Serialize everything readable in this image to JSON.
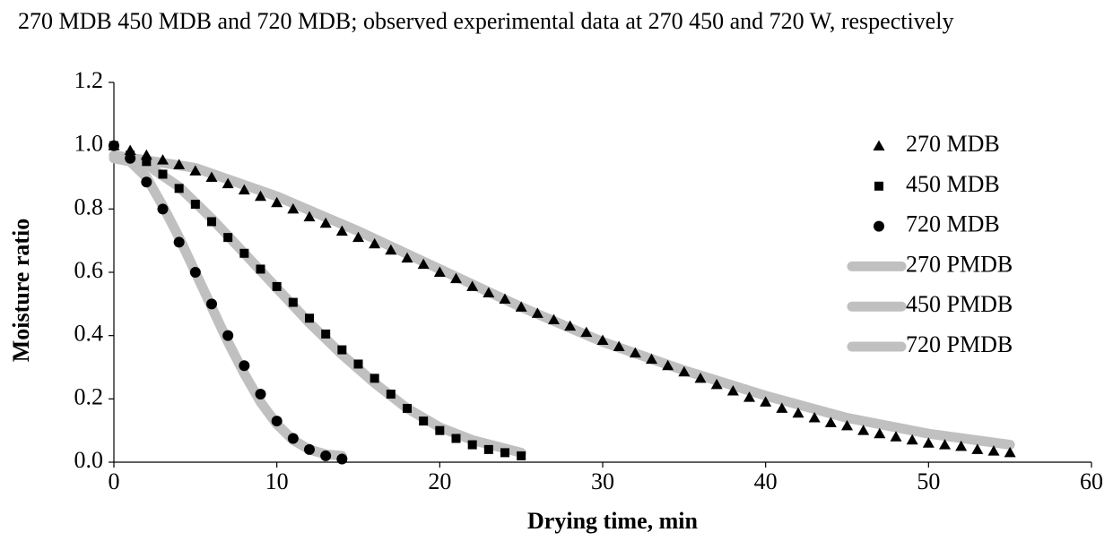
{
  "chart_data": {
    "type": "scatter",
    "title": "270 MDB 450 MDB and 720 MDB; observed experimental data at 270 450 and 720 W, respectively",
    "x_label": "Drying time, min",
    "y_label": "Moisture ratio",
    "xlim": [
      0,
      60
    ],
    "ylim": [
      0,
      1.2
    ],
    "xticks": [
      0,
      10,
      20,
      30,
      40,
      50,
      60
    ],
    "yticks": [
      {
        "value": 0,
        "label": "0.0"
      },
      {
        "value": 0.2,
        "label": "0.2"
      },
      {
        "value": 0.4,
        "label": "0.4"
      },
      {
        "value": 0.6,
        "label": "0.6"
      },
      {
        "value": 0.8,
        "label": "0.8"
      },
      {
        "value": 1,
        "label": "1.0"
      },
      {
        "value": 1.2,
        "label": "1.2"
      }
    ],
    "grid": false,
    "legend": "right",
    "series": [
      {
        "name": "270 MDB",
        "mode": "markers",
        "marker": "triangle",
        "color": "#000000",
        "x": [
          0,
          1,
          2,
          3,
          4,
          5,
          6,
          7,
          8,
          9,
          10,
          11,
          12,
          13,
          14,
          15,
          16,
          17,
          18,
          19,
          20,
          21,
          22,
          23,
          24,
          25,
          26,
          27,
          28,
          29,
          30,
          31,
          32,
          33,
          34,
          35,
          36,
          37,
          38,
          39,
          40,
          41,
          42,
          43,
          44,
          45,
          46,
          47,
          48,
          49,
          50,
          51,
          52,
          53,
          54,
          55
        ],
        "values": [
          1.0,
          0.985,
          0.97,
          0.955,
          0.94,
          0.92,
          0.9,
          0.88,
          0.86,
          0.84,
          0.82,
          0.8,
          0.775,
          0.755,
          0.73,
          0.71,
          0.69,
          0.67,
          0.645,
          0.625,
          0.6,
          0.58,
          0.555,
          0.535,
          0.515,
          0.49,
          0.47,
          0.45,
          0.43,
          0.41,
          0.385,
          0.365,
          0.345,
          0.325,
          0.305,
          0.285,
          0.265,
          0.245,
          0.225,
          0.205,
          0.19,
          0.17,
          0.155,
          0.14,
          0.125,
          0.115,
          0.1,
          0.09,
          0.08,
          0.07,
          0.06,
          0.055,
          0.05,
          0.04,
          0.035,
          0.03
        ]
      },
      {
        "name": "450 MDB",
        "mode": "markers",
        "marker": "square",
        "color": "#000000",
        "x": [
          0,
          1,
          2,
          3,
          4,
          5,
          6,
          7,
          8,
          9,
          10,
          11,
          12,
          13,
          14,
          15,
          16,
          17,
          18,
          19,
          20,
          21,
          22,
          23,
          24,
          25
        ],
        "values": [
          1.0,
          0.97,
          0.95,
          0.91,
          0.865,
          0.815,
          0.76,
          0.71,
          0.66,
          0.61,
          0.555,
          0.505,
          0.455,
          0.405,
          0.355,
          0.31,
          0.265,
          0.215,
          0.17,
          0.13,
          0.1,
          0.075,
          0.055,
          0.04,
          0.03,
          0.02
        ]
      },
      {
        "name": "720 MDB",
        "mode": "markers",
        "marker": "circle",
        "color": "#000000",
        "x": [
          0,
          1,
          2,
          3,
          4,
          5,
          6,
          7,
          8,
          9,
          10,
          11,
          12,
          13,
          14
        ],
        "values": [
          1.0,
          0.96,
          0.885,
          0.8,
          0.695,
          0.6,
          0.5,
          0.4,
          0.305,
          0.215,
          0.13,
          0.075,
          0.04,
          0.02,
          0.01
        ]
      },
      {
        "name": "270 PMDB",
        "mode": "line",
        "color": "#c0c0c0",
        "x": [
          0,
          5,
          10,
          15,
          20,
          25,
          30,
          35,
          40,
          45,
          50,
          55
        ],
        "values": [
          0.97,
          0.93,
          0.84,
          0.73,
          0.61,
          0.49,
          0.38,
          0.29,
          0.21,
          0.14,
          0.09,
          0.055
        ]
      },
      {
        "name": "450 PMDB",
        "mode": "line",
        "color": "#c0c0c0",
        "x": [
          0,
          2,
          4,
          6,
          8,
          10,
          12,
          14,
          16,
          18,
          20,
          22,
          25
        ],
        "values": [
          0.97,
          0.94,
          0.87,
          0.77,
          0.66,
          0.55,
          0.44,
          0.34,
          0.25,
          0.17,
          0.11,
          0.07,
          0.03
        ]
      },
      {
        "name": "720 PMDB",
        "mode": "line",
        "color": "#c0c0c0",
        "x": [
          0,
          1,
          2,
          3,
          4,
          5,
          6,
          7,
          8,
          9,
          10,
          11,
          12,
          13,
          14
        ],
        "values": [
          0.96,
          0.95,
          0.9,
          0.81,
          0.71,
          0.6,
          0.49,
          0.38,
          0.28,
          0.19,
          0.12,
          0.07,
          0.04,
          0.025,
          0.02
        ]
      }
    ]
  }
}
